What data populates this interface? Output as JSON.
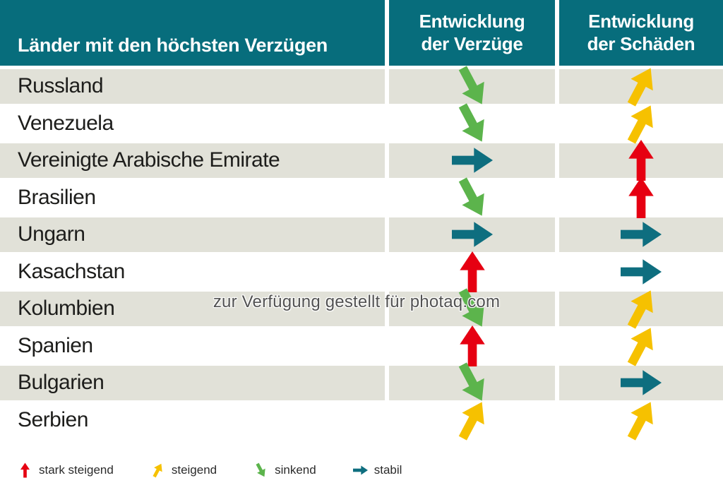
{
  "header": {
    "col1": "Länder mit den höchsten Verzügen",
    "col2": "Entwicklung\nder Verzüge",
    "col3": "Entwicklung\nder Schäden"
  },
  "rows": [
    {
      "country": "Russland",
      "verzuege": "sinkend",
      "schaeden": "steigend"
    },
    {
      "country": "Venezuela",
      "verzuege": "sinkend",
      "schaeden": "steigend"
    },
    {
      "country": "Vereinigte Arabische Emirate",
      "verzuege": "stabil",
      "schaeden": "stark steigend"
    },
    {
      "country": "Brasilien",
      "verzuege": "sinkend",
      "schaeden": "stark steigend"
    },
    {
      "country": "Ungarn",
      "verzuege": "stabil",
      "schaeden": "stabil"
    },
    {
      "country": "Kasachstan",
      "verzuege": "stark steigend",
      "schaeden": "stabil"
    },
    {
      "country": "Kolumbien",
      "verzuege": "sinkend",
      "schaeden": "steigend"
    },
    {
      "country": "Spanien",
      "verzuege": "stark steigend",
      "schaeden": "steigend"
    },
    {
      "country": "Bulgarien",
      "verzuege": "sinkend",
      "schaeden": "stabil"
    },
    {
      "country": "Serbien",
      "verzuege": "steigend",
      "schaeden": "steigend"
    }
  ],
  "legend": [
    {
      "label": "stark steigend",
      "type": "stark steigend"
    },
    {
      "label": "steigend",
      "type": "steigend"
    },
    {
      "label": "sinkend",
      "type": "sinkend"
    },
    {
      "label": "stabil",
      "type": "stabil"
    }
  ],
  "trend_colors": {
    "stark steigend": "#e60012",
    "steigend": "#f6c100",
    "sinkend": "#5cb44c",
    "stabil": "#0e6e7f"
  },
  "colors": {
    "header_bg": "#076d7c",
    "row_alt_bg": "#e1e1d8",
    "row_bg": "#ffffff"
  },
  "watermark": "zur Verfügung gestellt für photaq.com"
}
